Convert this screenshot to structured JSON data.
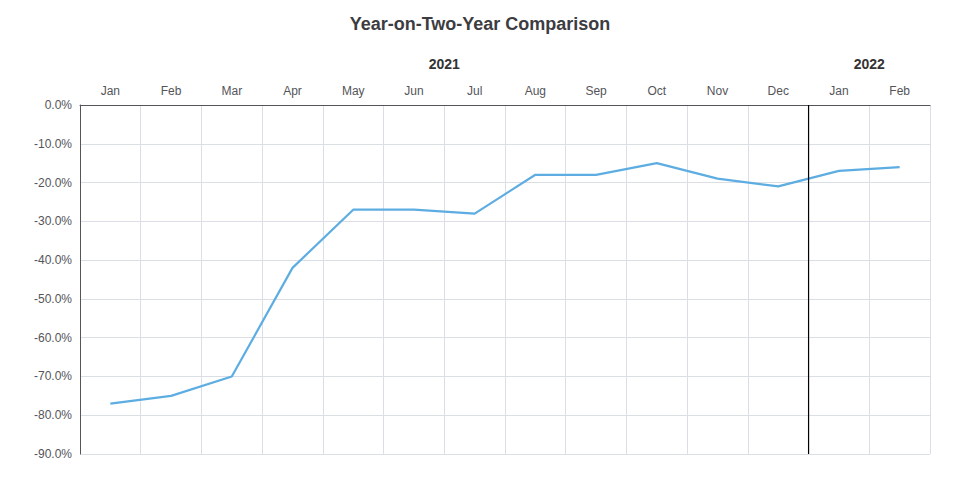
{
  "chart_data": {
    "type": "line",
    "title": "Year-on-Two-Year Comparison",
    "categories": [
      "Jan",
      "Feb",
      "Mar",
      "Apr",
      "May",
      "Jun",
      "Jul",
      "Aug",
      "Sep",
      "Oct",
      "Nov",
      "Dec",
      "Jan",
      "Feb"
    ],
    "values": [
      -77,
      -75,
      -70,
      -42,
      -27,
      -27,
      -28,
      -18,
      -18,
      -15,
      -19,
      -21,
      -17,
      -16
    ],
    "color": "#5DADE2",
    "ylim": [
      -90,
      0
    ],
    "yticks": [
      {
        "value": 0,
        "label": "0.0%"
      },
      {
        "value": -10,
        "label": "-10.0%"
      },
      {
        "value": -20,
        "label": "-20.0%"
      },
      {
        "value": -30,
        "label": "-30.0%"
      },
      {
        "value": -40,
        "label": "-40.0%"
      },
      {
        "value": -50,
        "label": "-50.0%"
      },
      {
        "value": -60,
        "label": "-60.0%"
      },
      {
        "value": -70,
        "label": "-70.0%"
      },
      {
        "value": -80,
        "label": "-80.0%"
      },
      {
        "value": -90,
        "label": "-90.0%"
      }
    ],
    "grid": true,
    "annotations": [
      {
        "text": "2021",
        "count": 12
      },
      {
        "text": "2022",
        "count": 2
      }
    ]
  }
}
